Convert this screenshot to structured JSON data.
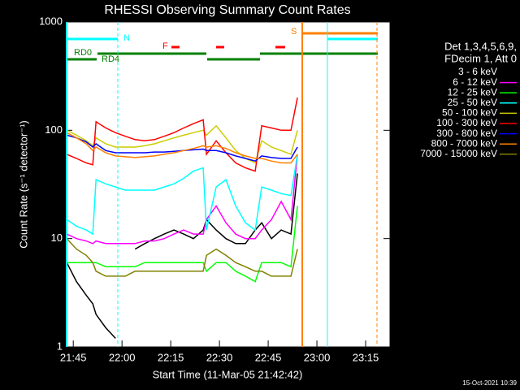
{
  "chart_data": {
    "type": "line",
    "title": "RHESSI Observing Summary Count Rates",
    "xlabel": "Start Time (11-Mar-05 21:42:42)",
    "ylabel": "Count Rate (s⁻¹ detector⁻¹)",
    "footer": "15-Oct-2021 10:39",
    "legend_header": [
      "Det 1,3,4,5,6,9,",
      "FDecim 1, Att 0"
    ],
    "flags": {
      "night": "N",
      "saa": "S",
      "flare": "F",
      "decim0": "RD0",
      "decim4": "RD4"
    },
    "log_y": true,
    "xlim": [
      "21:42:42",
      "23:22:30"
    ],
    "ylim": [
      1,
      1000
    ],
    "xticks": [
      "21:45",
      "22:00",
      "22:15",
      "22:30",
      "22:45",
      "23:00",
      "23:15"
    ],
    "yticks": [
      1,
      10,
      100,
      1000
    ],
    "x": [
      "21:43",
      "21:46",
      "21:49",
      "21:51",
      "21:52",
      "21:55",
      "21:58",
      "22:01",
      "22:04",
      "22:07",
      "22:10",
      "22:13",
      "22:16",
      "22:19",
      "22:22",
      "22:25",
      "22:26",
      "22:29",
      "22:32",
      "22:35",
      "22:38",
      "22:41",
      "22:43",
      "22:46",
      "22:49",
      "22:52",
      "22:54"
    ],
    "series": [
      {
        "name": "3 - 6 keV",
        "color": "#000000",
        "values": [
          6,
          4,
          3,
          2.5,
          2,
          1.5,
          1.2,
          null,
          8,
          9,
          10,
          11,
          12,
          11,
          10,
          12,
          15,
          12,
          10,
          9,
          9,
          12,
          14,
          10,
          12,
          11,
          40
        ]
      },
      {
        "name": "6 - 12 keV",
        "color": "#ff00ff",
        "values": [
          11,
          10,
          9.5,
          9,
          9.5,
          9,
          9,
          9,
          9,
          9.5,
          9.5,
          10,
          11,
          12,
          11,
          11,
          15,
          20,
          14,
          11,
          10,
          10,
          12,
          15,
          22,
          15,
          60
        ]
      },
      {
        "name": "12 - 25 keV",
        "color": "#00ff00",
        "values": [
          6,
          6,
          6,
          6,
          6,
          5.5,
          5.5,
          5.5,
          5.5,
          6,
          6,
          6,
          6,
          6,
          6,
          6,
          5,
          6,
          6,
          5,
          4.5,
          4,
          6,
          6,
          6,
          5.5,
          20
        ]
      },
      {
        "name": "25 - 50 keV",
        "color": "#00ffff",
        "values": [
          15,
          13,
          12,
          11,
          35,
          32,
          30,
          28,
          28,
          28,
          28,
          30,
          32,
          36,
          42,
          45,
          12,
          30,
          35,
          20,
          14,
          12,
          30,
          28,
          26,
          25,
          60
        ]
      },
      {
        "name": "50 - 100 keV",
        "color": "#cccc00",
        "values": [
          100,
          90,
          80,
          72,
          85,
          75,
          70,
          70,
          70,
          72,
          75,
          80,
          85,
          90,
          95,
          100,
          90,
          110,
          85,
          65,
          55,
          50,
          80,
          70,
          65,
          60,
          100
        ]
      },
      {
        "name": "100 - 300 keV",
        "color": "#ff0000",
        "values": [
          60,
          55,
          50,
          48,
          120,
          105,
          95,
          88,
          82,
          80,
          82,
          88,
          95,
          105,
          115,
          125,
          60,
          80,
          62,
          50,
          45,
          42,
          110,
          105,
          100,
          100,
          200
        ]
      },
      {
        "name": "300 - 800 keV",
        "color": "#0000ff",
        "values": [
          90,
          85,
          78,
          70,
          75,
          65,
          62,
          62,
          62,
          62,
          63,
          63,
          64,
          65,
          66,
          67,
          65,
          65,
          62,
          58,
          55,
          52,
          58,
          56,
          55,
          55,
          70
        ]
      },
      {
        "name": "800 - 7000 keV",
        "color": "#ff8000",
        "values": [
          95,
          85,
          75,
          65,
          70,
          62,
          58,
          57,
          56,
          57,
          58,
          60,
          62,
          65,
          68,
          72,
          70,
          72,
          68,
          62,
          58,
          55,
          55,
          52,
          50,
          50,
          60
        ]
      },
      {
        "name": "7000 - 15000 keV",
        "color": "#808000",
        "values": [
          10,
          8,
          7,
          6,
          5,
          4.5,
          4.5,
          4.5,
          5,
          5,
          5,
          5,
          5,
          5,
          5,
          5,
          7,
          8,
          7,
          6,
          5.5,
          5,
          5,
          4.5,
          4.5,
          4.5,
          8
        ]
      }
    ]
  }
}
